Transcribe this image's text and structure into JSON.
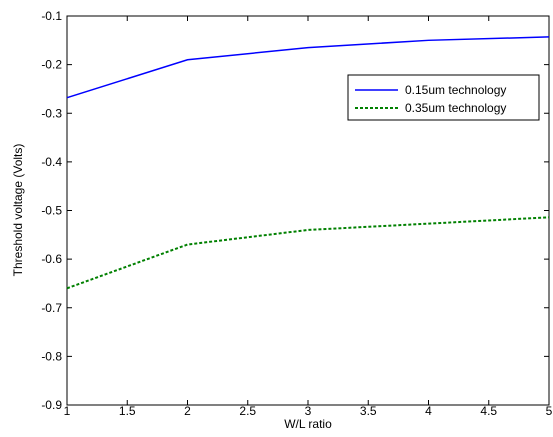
{
  "chart_data": {
    "type": "line",
    "title": "",
    "xlabel": "W/L ratio",
    "ylabel": "Threshold voltage (Volts)",
    "xlim": [
      1,
      5
    ],
    "ylim": [
      -0.9,
      -0.1
    ],
    "xticks": [
      1,
      1.5,
      2,
      2.5,
      3,
      3.5,
      4,
      4.5,
      5
    ],
    "xtick_labels": [
      "1",
      "1.5",
      "2",
      "2.5",
      "3",
      "3.5",
      "4",
      "4.5",
      "5"
    ],
    "yticks": [
      -0.1,
      -0.2,
      -0.3,
      -0.4,
      -0.5,
      -0.6,
      -0.7,
      -0.8,
      -0.9
    ],
    "ytick_labels": [
      "-0.1",
      "-0.2",
      "-0.3",
      "-0.4",
      "-0.5",
      "-0.6",
      "-0.7",
      "-0.8",
      "-0.9"
    ],
    "grid": false,
    "legend_position": "top-right",
    "x": [
      1,
      2,
      3,
      4,
      5
    ],
    "series": [
      {
        "name": "0.15um technology",
        "values": [
          -0.268,
          -0.19,
          -0.165,
          -0.15,
          -0.143
        ],
        "color": "#0000ff",
        "line_style": "solid"
      },
      {
        "name": "0.35um technology",
        "values": [
          -0.66,
          -0.57,
          -0.54,
          -0.527,
          -0.514
        ],
        "color": "#008000",
        "line_style": "dotted"
      }
    ]
  }
}
